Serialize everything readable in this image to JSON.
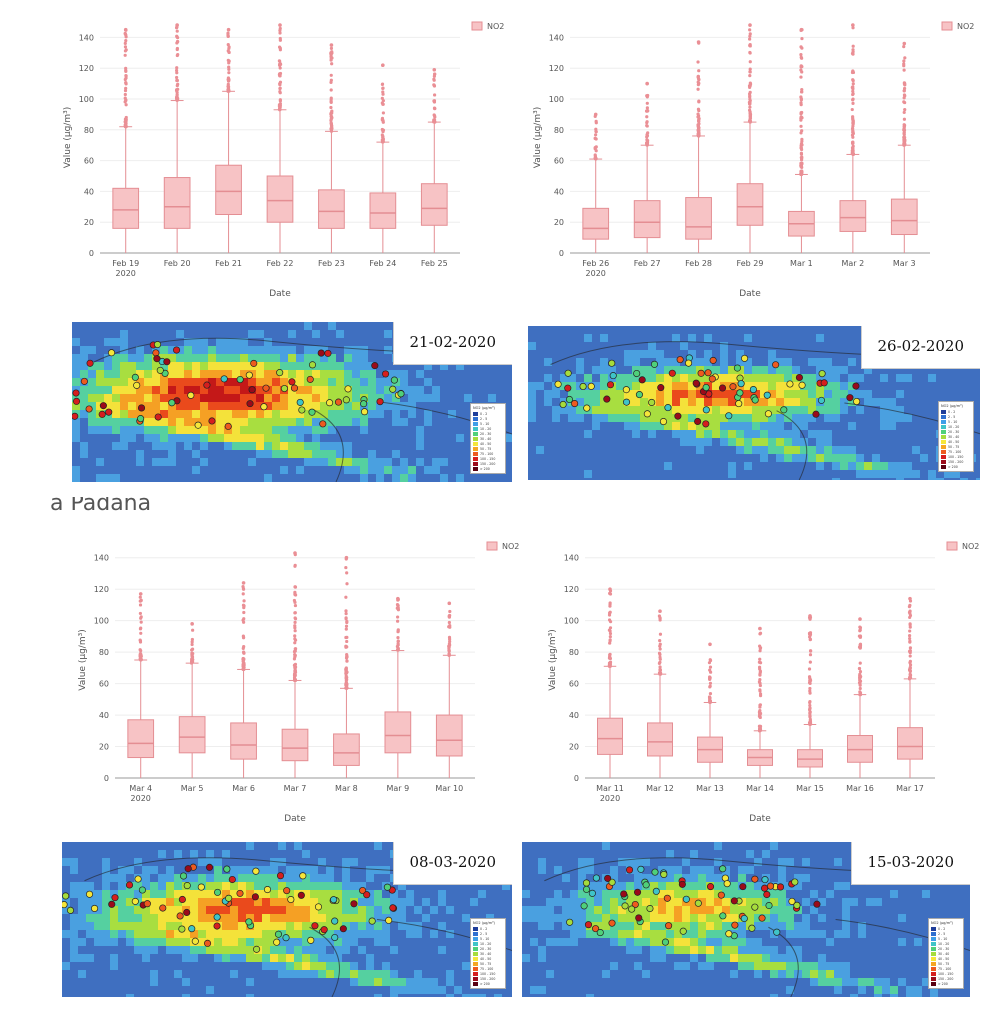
{
  "chart_data": [
    {
      "type": "box",
      "series_name": "NO2",
      "xlabel": "Date",
      "ylabel": "Value (µg/m³)",
      "ylim": [
        0,
        150
      ],
      "yticks": [
        0,
        20,
        40,
        60,
        80,
        100,
        120,
        140
      ],
      "categories": [
        "Feb 19 2020",
        "Feb 20",
        "Feb 21",
        "Feb 22",
        "Feb 23",
        "Feb 24",
        "Feb 25"
      ],
      "boxes": [
        {
          "q1": 16,
          "median": 28,
          "q3": 42,
          "whisker_low": 0,
          "whisker_high": 82,
          "outlier_max": 145
        },
        {
          "q1": 16,
          "median": 30,
          "q3": 49,
          "whisker_low": 0,
          "whisker_high": 99,
          "outlier_max": 148
        },
        {
          "q1": 25,
          "median": 40,
          "q3": 57,
          "whisker_low": 0,
          "whisker_high": 105,
          "outlier_max": 145
        },
        {
          "q1": 20,
          "median": 34,
          "q3": 50,
          "whisker_low": 0,
          "whisker_high": 93,
          "outlier_max": 148
        },
        {
          "q1": 16,
          "median": 27,
          "q3": 41,
          "whisker_low": 0,
          "whisker_high": 79,
          "outlier_max": 135
        },
        {
          "q1": 16,
          "median": 26,
          "q3": 39,
          "whisker_low": 0,
          "whisker_high": 72,
          "outlier_max": 122
        },
        {
          "q1": 18,
          "median": 29,
          "q3": 45,
          "whisker_low": 0,
          "whisker_high": 85,
          "outlier_max": 119
        }
      ]
    },
    {
      "type": "box",
      "series_name": "NO2",
      "xlabel": "Date",
      "ylabel": "Value (µg/m³)",
      "ylim": [
        0,
        150
      ],
      "yticks": [
        0,
        20,
        40,
        60,
        80,
        100,
        120,
        140
      ],
      "categories": [
        "Feb 26 2020",
        "Feb 27",
        "Feb 28",
        "Feb 29",
        "Mar 1",
        "Mar 2",
        "Mar 3"
      ],
      "boxes": [
        {
          "q1": 9,
          "median": 16,
          "q3": 29,
          "whisker_low": 0,
          "whisker_high": 61,
          "outlier_max": 90
        },
        {
          "q1": 10,
          "median": 20,
          "q3": 34,
          "whisker_low": 0,
          "whisker_high": 70,
          "outlier_max": 110
        },
        {
          "q1": 9,
          "median": 17,
          "q3": 36,
          "whisker_low": 0,
          "whisker_high": 76,
          "outlier_max": 137
        },
        {
          "q1": 18,
          "median": 30,
          "q3": 45,
          "whisker_low": 0,
          "whisker_high": 85,
          "outlier_max": 148
        },
        {
          "q1": 11,
          "median": 19,
          "q3": 27,
          "whisker_low": 0,
          "whisker_high": 51,
          "outlier_max": 145
        },
        {
          "q1": 14,
          "median": 23,
          "q3": 34,
          "whisker_low": 0,
          "whisker_high": 64,
          "outlier_max": 148
        },
        {
          "q1": 12,
          "median": 21,
          "q3": 35,
          "whisker_low": 0,
          "whisker_high": 70,
          "outlier_max": 136
        }
      ]
    },
    {
      "type": "box",
      "series_name": "NO2",
      "xlabel": "Date",
      "ylabel": "Value (µg/m³)",
      "ylim": [
        0,
        150
      ],
      "yticks": [
        0,
        20,
        40,
        60,
        80,
        100,
        120,
        140
      ],
      "categories": [
        "Mar 4 2020",
        "Mar 5",
        "Mar 6",
        "Mar 7",
        "Mar 8",
        "Mar 9",
        "Mar 10"
      ],
      "boxes": [
        {
          "q1": 13,
          "median": 22,
          "q3": 37,
          "whisker_low": 0,
          "whisker_high": 75,
          "outlier_max": 117
        },
        {
          "q1": 16,
          "median": 26,
          "q3": 39,
          "whisker_low": 0,
          "whisker_high": 73,
          "outlier_max": 98
        },
        {
          "q1": 12,
          "median": 21,
          "q3": 35,
          "whisker_low": 0,
          "whisker_high": 69,
          "outlier_max": 124
        },
        {
          "q1": 11,
          "median": 19,
          "q3": 31,
          "whisker_low": 0,
          "whisker_high": 62,
          "outlier_max": 143
        },
        {
          "q1": 8,
          "median": 16,
          "q3": 28,
          "whisker_low": 0,
          "whisker_high": 57,
          "outlier_max": 140
        },
        {
          "q1": 16,
          "median": 27,
          "q3": 42,
          "whisker_low": 0,
          "whisker_high": 81,
          "outlier_max": 114
        },
        {
          "q1": 14,
          "median": 24,
          "q3": 40,
          "whisker_low": 0,
          "whisker_high": 78,
          "outlier_max": 111
        }
      ]
    },
    {
      "type": "box",
      "series_name": "NO2",
      "xlabel": "Date",
      "ylabel": "Value (µg/m³)",
      "ylim": [
        0,
        150
      ],
      "yticks": [
        0,
        20,
        40,
        60,
        80,
        100,
        120,
        140
      ],
      "categories": [
        "Mar 11 2020",
        "Mar 12",
        "Mar 13",
        "Mar 14",
        "Mar 15",
        "Mar 16",
        "Mar 17"
      ],
      "boxes": [
        {
          "q1": 15,
          "median": 25,
          "q3": 38,
          "whisker_low": 0,
          "whisker_high": 71,
          "outlier_max": 120
        },
        {
          "q1": 14,
          "median": 23,
          "q3": 35,
          "whisker_low": 0,
          "whisker_high": 66,
          "outlier_max": 106
        },
        {
          "q1": 10,
          "median": 18,
          "q3": 26,
          "whisker_low": 0,
          "whisker_high": 48,
          "outlier_max": 85
        },
        {
          "q1": 8,
          "median": 13,
          "q3": 18,
          "whisker_low": 0,
          "whisker_high": 30,
          "outlier_max": 95
        },
        {
          "q1": 7,
          "median": 12,
          "q3": 18,
          "whisker_low": 0,
          "whisker_high": 34,
          "outlier_max": 103
        },
        {
          "q1": 10,
          "median": 18,
          "q3": 27,
          "whisker_low": 0,
          "whisker_high": 53,
          "outlier_max": 101
        },
        {
          "q1": 12,
          "median": 20,
          "q3": 32,
          "whisker_low": 0,
          "whisker_high": 63,
          "outlier_max": 114
        }
      ]
    }
  ],
  "maps": [
    {
      "date": "21-02-2020"
    },
    {
      "date": "26-02-2020"
    },
    {
      "date": "08-03-2020"
    },
    {
      "date": "15-03-2020"
    }
  ],
  "map_legend": {
    "title": "NO2 (µg/m³)",
    "ranges": [
      "0 - 2",
      "2 - 5",
      "5 - 10",
      "10 - 20",
      "20 - 30",
      "30 - 40",
      "40 - 50",
      "50 - 75",
      "75 - 100",
      "100 - 150",
      "150 - 200",
      "> 200"
    ],
    "colors": [
      "#1f3e9a",
      "#2f6fd0",
      "#3f9ee8",
      "#3fc4c8",
      "#4fd07a",
      "#a6dc3c",
      "#f5e63a",
      "#f5a623",
      "#ee5a1f",
      "#d61e1e",
      "#9b0a1a",
      "#5a0010"
    ]
  },
  "section_caption": "a Padana",
  "colors": {
    "box_fill": "#f7c3c5",
    "box_stroke": "#e48e93",
    "outlier": "#ea8f95",
    "grid": "#eeeeee"
  }
}
